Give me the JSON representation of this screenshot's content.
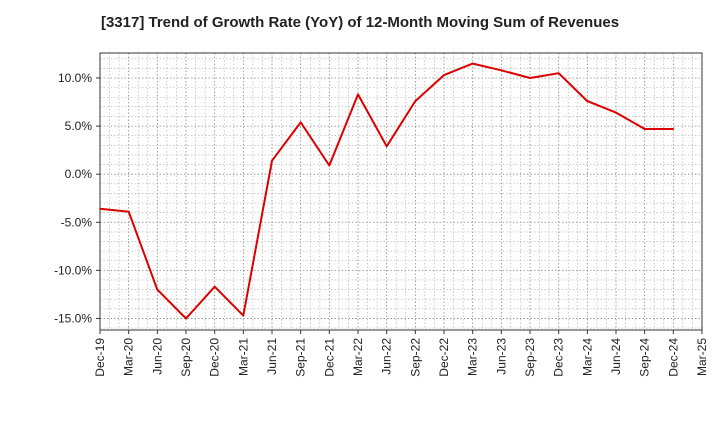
{
  "chart_data": {
    "type": "line",
    "title": "[3317]  Trend of Growth Rate (YoY) of 12-Month Moving Sum of Revenues",
    "xlabel": "",
    "ylabel": "",
    "categories": [
      "Dec-19",
      "Mar-20",
      "Jun-20",
      "Sep-20",
      "Dec-20",
      "Mar-21",
      "Jun-21",
      "Sep-21",
      "Dec-21",
      "Mar-22",
      "Jun-22",
      "Sep-22",
      "Dec-22",
      "Mar-23",
      "Jun-23",
      "Sep-23",
      "Dec-23",
      "Mar-24",
      "Jun-24",
      "Sep-24",
      "Dec-24",
      "Mar-25"
    ],
    "y_ticks": [
      10.0,
      5.0,
      0.0,
      -5.0,
      -10.0,
      -15.0
    ],
    "y_tick_labels": [
      "10.0%",
      "5.0%",
      "0.0%",
      "-5.0%",
      "-10.0%",
      "-15.0%"
    ],
    "ylim": [
      -16.2,
      12.6
    ],
    "grid": true,
    "legend": "none",
    "series": [
      {
        "color": "#dd0000",
        "values": [
          -3.6,
          -3.9,
          -12.0,
          -15.0,
          -11.7,
          -14.7,
          1.4,
          5.4,
          0.9,
          8.3,
          2.9,
          7.6,
          10.3,
          11.5,
          10.8,
          10.0,
          10.5,
          7.6,
          6.4,
          4.7,
          4.7,
          null
        ]
      }
    ]
  }
}
